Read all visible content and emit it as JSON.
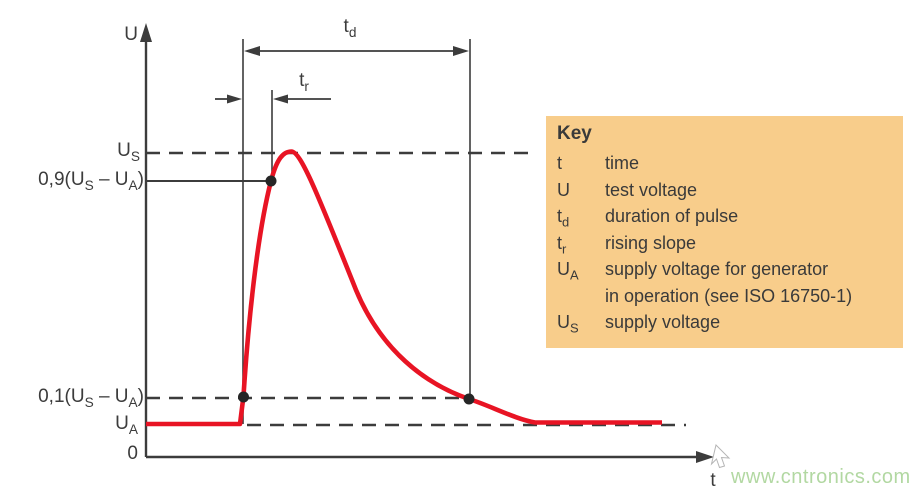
{
  "colors": {
    "line": "#3c3c3c",
    "curve": "#e81424",
    "dot": "#262626",
    "key_bg": "#f8cd8b",
    "key_text": "#3a3a3a",
    "watermark": "#b2d8a2"
  },
  "diagram": {
    "y_axis_label": "U",
    "x_axis_label": "t",
    "origin_label": "0",
    "dim_td": [
      {
        "t": "t"
      },
      {
        "t": "d",
        "sub": true
      }
    ],
    "dim_tr": [
      {
        "t": "t"
      },
      {
        "t": "r",
        "sub": true
      }
    ],
    "level_us": [
      {
        "t": "U"
      },
      {
        "t": "S",
        "sub": true
      }
    ],
    "level_09": [
      {
        "t": "0,9(U"
      },
      {
        "t": "S",
        "sub": true
      },
      {
        "t": " – U"
      },
      {
        "t": "A",
        "sub": true
      },
      {
        "t": ")"
      }
    ],
    "level_01": [
      {
        "t": "0,1(U"
      },
      {
        "t": "S",
        "sub": true
      },
      {
        "t": " – U"
      },
      {
        "t": "A",
        "sub": true
      },
      {
        "t": ")"
      }
    ],
    "level_ua": [
      {
        "t": "U"
      },
      {
        "t": "A",
        "sub": true
      }
    ]
  },
  "key": {
    "title": "Key",
    "rows": [
      {
        "term": [
          {
            "t": "t"
          }
        ],
        "def": [
          "time"
        ]
      },
      {
        "term": [
          {
            "t": "U"
          }
        ],
        "def": [
          "test voltage"
        ]
      },
      {
        "term": [
          {
            "t": "t"
          },
          {
            "t": "d",
            "sub": true
          }
        ],
        "def": [
          "duration of pulse"
        ]
      },
      {
        "term": [
          {
            "t": "t"
          },
          {
            "t": "r",
            "sub": true
          }
        ],
        "def": [
          "rising slope"
        ]
      },
      {
        "term": [
          {
            "t": "U"
          },
          {
            "t": "A",
            "sub": true
          }
        ],
        "def": [
          "supply voltage for generator",
          "in operation (see ISO 16750-1)"
        ]
      },
      {
        "term": [
          {
            "t": "U"
          },
          {
            "t": "S",
            "sub": true
          }
        ],
        "def": [
          "supply voltage"
        ]
      }
    ]
  },
  "watermark": "www.cntronics.com"
}
